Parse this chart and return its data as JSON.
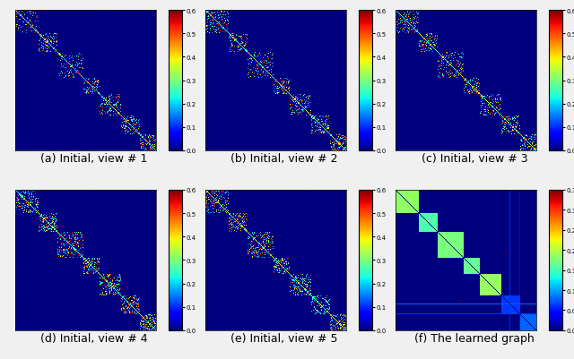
{
  "subtitles": [
    "(a) Initial, view # 1",
    "(b) Initial, view # 2",
    "(c) Initial, view # 3",
    "(d) Initial, view # 4",
    "(e) Initial, view # 5",
    "(f) The learned graph"
  ],
  "colormap": "jet",
  "n": 300,
  "n_clusters": 7,
  "background": "#f0f0f0",
  "vmax_views": 0.6,
  "vmax_learned": 0.35,
  "fig_width": 6.4,
  "fig_height": 4.02,
  "subtitle_fontsize": 9,
  "cb_fontsize": 5
}
